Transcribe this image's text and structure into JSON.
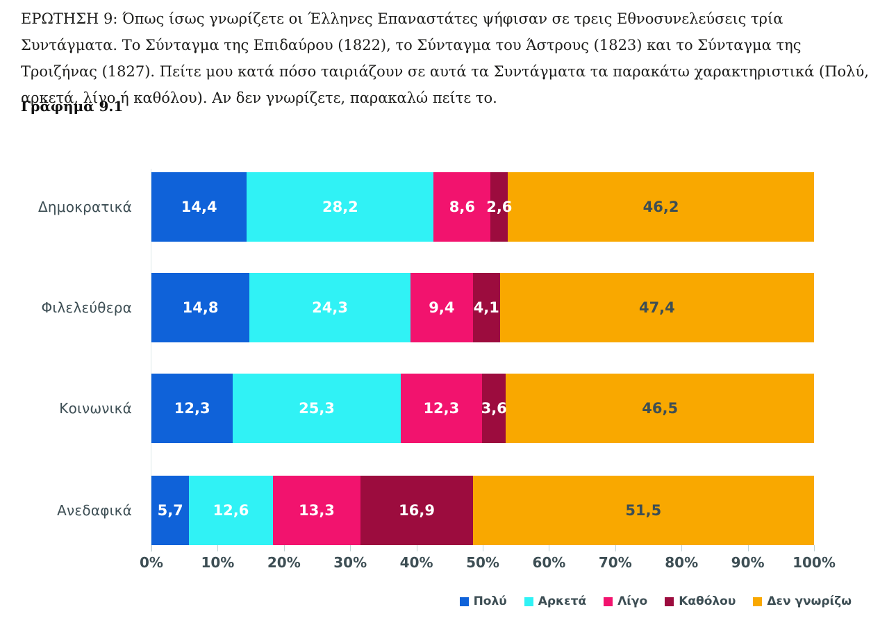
{
  "header": {
    "question": "ΕΡΩΤΗΣΗ 9: Όπως ίσως γνωρίζετε οι Έλληνες Επαναστάτες ψήφισαν σε τρεις Εθνοσυνελεύσεις τρία Συντάγματα. Το Σύνταγμα της Επιδαύρου (1822), το Σύνταγμα του Άστρους (1823) και το Σύνταγμα της Τροιζήνας (1827). Πείτε μου κατά πόσο ταιριάζουν σε αυτά τα Συντάγματα τα παρακάτω χαρακτηριστικά (Πολύ, αρκετά, λίγο ή καθόλου). Αν δεν γνωρίζετε, παρακαλώ πείτε το.",
    "figure_label": "Γράφημα 9.1"
  },
  "chart_data": {
    "type": "bar",
    "orientation": "horizontal-stacked",
    "title": "",
    "xlabel": "",
    "ylabel": "",
    "xlim": [
      0,
      100
    ],
    "grid": false,
    "legend_position": "bottom-right",
    "categories": [
      "Δημοκρατικά",
      "Φιλελεύθερα",
      "Κοινωνικά",
      "Ανεδαφικά"
    ],
    "x_ticks": [
      "0%",
      "10%",
      "20%",
      "30%",
      "40%",
      "50%",
      "60%",
      "70%",
      "80%",
      "90%",
      "100%"
    ],
    "series": [
      {
        "name": "Πολύ",
        "color": "#0F62D9",
        "label_color": "#ffffff",
        "values": [
          14.4,
          14.8,
          12.3,
          5.7
        ],
        "labels": [
          "14,4",
          "14,8",
          "12,3",
          "5,7"
        ]
      },
      {
        "name": "Αρκετά",
        "color": "#30F2F5",
        "label_color": "#ffffff",
        "values": [
          28.2,
          24.3,
          25.3,
          12.6
        ],
        "labels": [
          "28,2",
          "24,3",
          "25,3",
          "12,6"
        ]
      },
      {
        "name": "Λίγο",
        "color": "#F2136E",
        "label_color": "#ffffff",
        "values": [
          8.6,
          9.4,
          12.3,
          13.3
        ],
        "labels": [
          "8,6",
          "9,4",
          "12,3",
          "13,3"
        ]
      },
      {
        "name": "Καθόλου",
        "color": "#9C0C3E",
        "label_color": "#ffffff",
        "values": [
          2.6,
          4.1,
          3.6,
          16.9
        ],
        "labels": [
          "2,6",
          "4,1",
          "3,6",
          "16,9"
        ]
      },
      {
        "name": "Δεν γνωρίζω",
        "color": "#F9A800",
        "label_color": "#3D4E54",
        "values": [
          46.2,
          47.4,
          46.5,
          51.5
        ],
        "labels": [
          "46,2",
          "47,4",
          "46,5",
          "51,5"
        ]
      }
    ],
    "text_color": "#3D4E54",
    "background": "#FFFFFF"
  }
}
